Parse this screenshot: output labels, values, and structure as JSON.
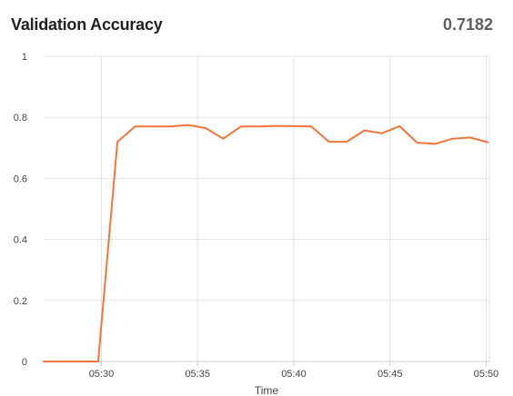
{
  "header": {
    "title": "Validation Accuracy",
    "value": "0.7182"
  },
  "chart_data": {
    "type": "line",
    "title": "Validation Accuracy",
    "xlabel": "Time",
    "ylabel": "",
    "ylim": [
      0,
      1
    ],
    "xlim": [
      "05:27:00",
      "05:50:10"
    ],
    "y_ticks": [
      "0",
      "0.2",
      "0.4",
      "0.6",
      "0.8",
      "1"
    ],
    "x_ticks": [
      "05:30",
      "05:35",
      "05:40",
      "05:45",
      "05:50"
    ],
    "grid": true,
    "line_color": "#f4743b",
    "series": [
      {
        "x": [
          "05:27:00",
          "05:29:50",
          "05:30:50",
          "05:31:45",
          "05:32:40",
          "05:33:35",
          "05:34:30",
          "05:35:25",
          "05:36:20",
          "05:37:15",
          "05:38:10",
          "05:39:05",
          "05:40:00",
          "05:40:55",
          "05:41:50",
          "05:42:45",
          "05:43:40",
          "05:44:35",
          "05:45:30",
          "05:46:25",
          "05:47:20",
          "05:48:15",
          "05:49:10",
          "05:50:05"
        ],
        "y": [
          0,
          0,
          0.72,
          0.77,
          0.77,
          0.77,
          0.775,
          0.765,
          0.73,
          0.77,
          0.77,
          0.772,
          0.771,
          0.77,
          0.72,
          0.72,
          0.757,
          0.748,
          0.771,
          0.717,
          0.713,
          0.73,
          0.734,
          0.7182
        ]
      }
    ]
  }
}
